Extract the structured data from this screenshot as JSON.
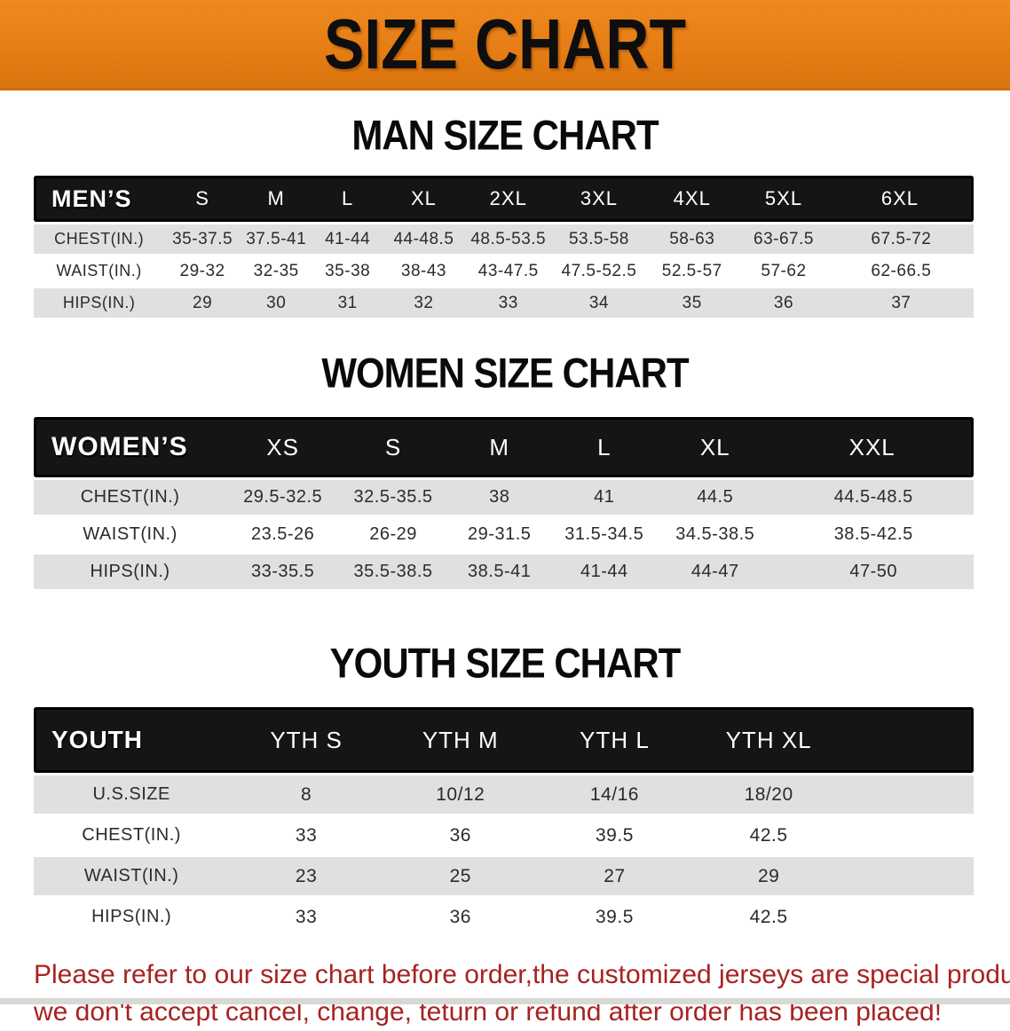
{
  "banner": {
    "title": "SIZE CHART"
  },
  "colors": {
    "banner_bg": "#e67d15",
    "header_band_bg": "#151515",
    "row_alt_bg": "#e0e0de",
    "footer_text": "#a82222",
    "heading_text": "#0a0a0a"
  },
  "sections": [
    {
      "heading": "MAN SIZE CHART",
      "table": {
        "label": "MEN’S",
        "columns": [
          "S",
          "M",
          "L",
          "XL",
          "2XL",
          "3XL",
          "4XL",
          "5XL",
          "6XL"
        ],
        "rows": [
          {
            "label": "CHEST(IN.)",
            "values": [
              "35-37.5",
              "37.5-41",
              "41-44",
              "44-48.5",
              "48.5-53.5",
              "53.5-58",
              "58-63",
              "63-67.5",
              "67.5-72"
            ]
          },
          {
            "label": "WAIST(IN.)",
            "values": [
              "29-32",
              "32-35",
              "35-38",
              "38-43",
              "43-47.5",
              "47.5-52.5",
              "52.5-57",
              "57-62",
              "62-66.5"
            ]
          },
          {
            "label": "HIPS(IN.)",
            "values": [
              "29",
              "30",
              "31",
              "32",
              "33",
              "34",
              "35",
              "36",
              "37"
            ]
          }
        ]
      }
    },
    {
      "heading": "WOMEN SIZE CHART",
      "table": {
        "label": "WOMEN’S",
        "columns": [
          "XS",
          "S",
          "M",
          "L",
          "XL",
          "XXL"
        ],
        "rows": [
          {
            "label": "CHEST(IN.)",
            "values": [
              "29.5-32.5",
              "32.5-35.5",
              "38",
              "41",
              "44.5",
              "44.5-48.5"
            ]
          },
          {
            "label": "WAIST(IN.)",
            "values": [
              "23.5-26",
              "26-29",
              "29-31.5",
              "31.5-34.5",
              "34.5-38.5",
              "38.5-42.5"
            ]
          },
          {
            "label": "HIPS(IN.)",
            "values": [
              "33-35.5",
              "35.5-38.5",
              "38.5-41",
              "41-44",
              "44-47",
              "47-50"
            ]
          }
        ]
      }
    },
    {
      "heading": "YOUTH SIZE CHART",
      "table": {
        "label": "YOUTH",
        "columns": [
          "YTH S",
          "YTH M",
          "YTH L",
          "YTH XL"
        ],
        "rows": [
          {
            "label": "U.S.SIZE",
            "values": [
              "8",
              "10/12",
              "14/16",
              "18/20"
            ]
          },
          {
            "label": "CHEST(IN.)",
            "values": [
              "33",
              "36",
              "39.5",
              "42.5"
            ]
          },
          {
            "label": "WAIST(IN.)",
            "values": [
              "23",
              "25",
              "27",
              "29"
            ]
          },
          {
            "label": "HIPS(IN.)",
            "values": [
              "33",
              "36",
              "39.5",
              "42.5"
            ]
          }
        ]
      }
    }
  ],
  "footer": {
    "line1": "Please refer to our size chart before order,the customized jerseys are special products,",
    "line2": "we don't accept cancel, change, teturn or refund after order has been placed!"
  }
}
